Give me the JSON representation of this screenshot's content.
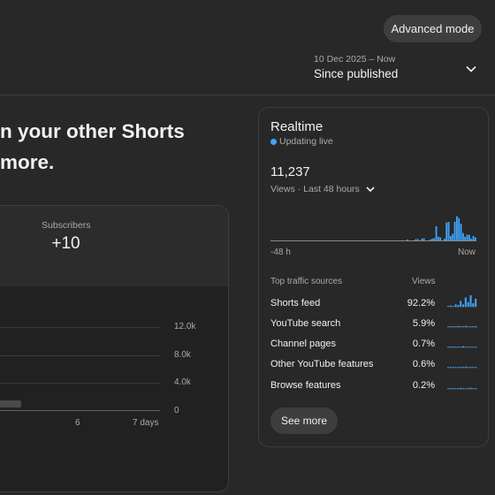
{
  "header": {
    "advanced_mode_label": "Advanced mode",
    "date_range": "10 Dec 2025 – Now",
    "date_label": "Since published"
  },
  "headline": {
    "line1": "n your other Shorts",
    "line2": " more."
  },
  "summary": {
    "subscribers_label": "Subscribers",
    "subscribers_value": "+10"
  },
  "chart_data": {
    "type": "line",
    "y_ticks": [
      "12.0k",
      "8.0k",
      "4.0k",
      "0"
    ],
    "x_ticks": [
      "6",
      "7 days"
    ],
    "ylim": [
      0,
      12000
    ]
  },
  "realtime": {
    "title": "Realtime",
    "status": "Updating live",
    "views": "11,237",
    "period": "Views · Last 48 hours",
    "range_start": "-48 h",
    "range_end": "Now",
    "bars": [
      0,
      0,
      0,
      0,
      0,
      0,
      0,
      0,
      0,
      0,
      0,
      0,
      0,
      0,
      0,
      0,
      0,
      0,
      0,
      0,
      0,
      0,
      0,
      0,
      0,
      0,
      0,
      0,
      0,
      0,
      0,
      0,
      0,
      0,
      0,
      0,
      0,
      0,
      0,
      0,
      0,
      0,
      0,
      0,
      0,
      0,
      0,
      0,
      0,
      0,
      0,
      0,
      0,
      0,
      0,
      0,
      0,
      0,
      0,
      0,
      0,
      0,
      0,
      0,
      0,
      0,
      0.02,
      0,
      0,
      0,
      0.03,
      0.04,
      0,
      0.05,
      0.06,
      0,
      0,
      0.02,
      0.05,
      0.06,
      0.38,
      0.1,
      0.08,
      0,
      0.05,
      0.48,
      0.5,
      0.12,
      0.18,
      0.5,
      0.65,
      0.6,
      0.45,
      0.2,
      0.1,
      0.16,
      0.15,
      0.05,
      0.12,
      0.08
    ],
    "accent_color": "#3ea6ff"
  },
  "traffic_sources": {
    "header": "Top traffic sources",
    "views_header": "Views",
    "rows": [
      {
        "name": "Shorts feed",
        "pct": "92.2%",
        "spark": [
          0,
          0.1,
          0,
          0.2,
          0.15,
          0.5,
          0.2,
          0.8,
          0.4,
          1,
          0.3,
          0.7
        ]
      },
      {
        "name": "YouTube search",
        "pct": "5.9%",
        "spark": [
          0,
          0,
          0.05,
          0,
          0.1,
          0,
          0.05,
          0.1,
          0,
          0.05,
          0,
          0.08
        ]
      },
      {
        "name": "Channel pages",
        "pct": "0.7%",
        "spark": [
          0,
          0,
          0,
          0.05,
          0,
          0,
          0.1,
          0,
          0,
          0.05,
          0,
          0
        ]
      },
      {
        "name": "Other YouTube features",
        "pct": "0.6%",
        "spark": [
          0,
          0,
          0,
          0,
          0.05,
          0,
          0,
          0.1,
          0,
          0,
          0.05,
          0
        ]
      },
      {
        "name": "Browse features",
        "pct": "0.2%",
        "spark": [
          0,
          0,
          0.05,
          0,
          0,
          0.1,
          0,
          0,
          0.05,
          0.1,
          0,
          0
        ]
      }
    ]
  },
  "see_more_label": "See more"
}
